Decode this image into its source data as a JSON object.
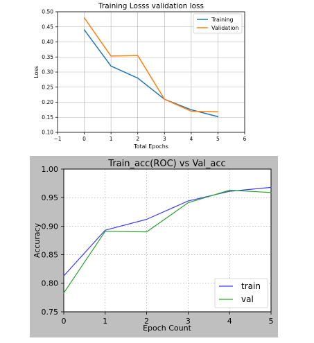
{
  "chart_data": [
    {
      "type": "line",
      "title": "Training Losss validation loss",
      "xlabel": "Total Epochs",
      "ylabel": "Loss",
      "xlim": [
        -1,
        6
      ],
      "ylim": [
        0.1,
        0.5
      ],
      "x_ticks": [
        -1,
        0,
        1,
        2,
        3,
        4,
        5,
        6
      ],
      "y_ticks": [
        0.1,
        0.15,
        0.2,
        0.25,
        0.3,
        0.35,
        0.4,
        0.45,
        0.5
      ],
      "x_tick_labels": [
        "−1",
        "0",
        "1",
        "2",
        "3",
        "4",
        "5",
        "6"
      ],
      "y_tick_labels": [
        "0.10",
        "0.15",
        "0.20",
        "0.25",
        "0.30",
        "0.35",
        "0.40",
        "0.45",
        "0.50"
      ],
      "grid": true,
      "legend_position": "top-right",
      "x": [
        0,
        1,
        2,
        3,
        4,
        5
      ],
      "series": [
        {
          "name": "Training",
          "color": "#1f77b4",
          "values": [
            0.44,
            0.32,
            0.28,
            0.21,
            0.175,
            0.152
          ]
        },
        {
          "name": "Validation",
          "color": "#ff7f0e",
          "values": [
            0.48,
            0.353,
            0.355,
            0.21,
            0.17,
            0.168
          ]
        }
      ]
    },
    {
      "type": "line",
      "title": "Train_acc(ROC) vs Val_acc",
      "xlabel": "Epoch Count",
      "ylabel": "Accuracy",
      "xlim": [
        0,
        5
      ],
      "ylim": [
        0.75,
        1.0
      ],
      "x_ticks": [
        0,
        1,
        2,
        3,
        4,
        5
      ],
      "y_ticks": [
        0.75,
        0.8,
        0.85,
        0.9,
        0.95,
        1.0
      ],
      "x_tick_labels": [
        "0",
        "1",
        "2",
        "3",
        "4",
        "5"
      ],
      "y_tick_labels": [
        "0.75",
        "0.80",
        "0.85",
        "0.90",
        "0.95",
        "1.00"
      ],
      "grid": true,
      "legend_position": "bottom-right",
      "figure_background": "#bfbfbf",
      "x": [
        0,
        1,
        2,
        3,
        4,
        5
      ],
      "series": [
        {
          "name": "train",
          "color": "#3b3bff",
          "values": [
            0.813,
            0.893,
            0.912,
            0.944,
            0.961,
            0.968
          ]
        },
        {
          "name": "val",
          "color": "#2ca02c",
          "values": [
            0.783,
            0.891,
            0.89,
            0.941,
            0.963,
            0.959
          ]
        }
      ]
    }
  ]
}
